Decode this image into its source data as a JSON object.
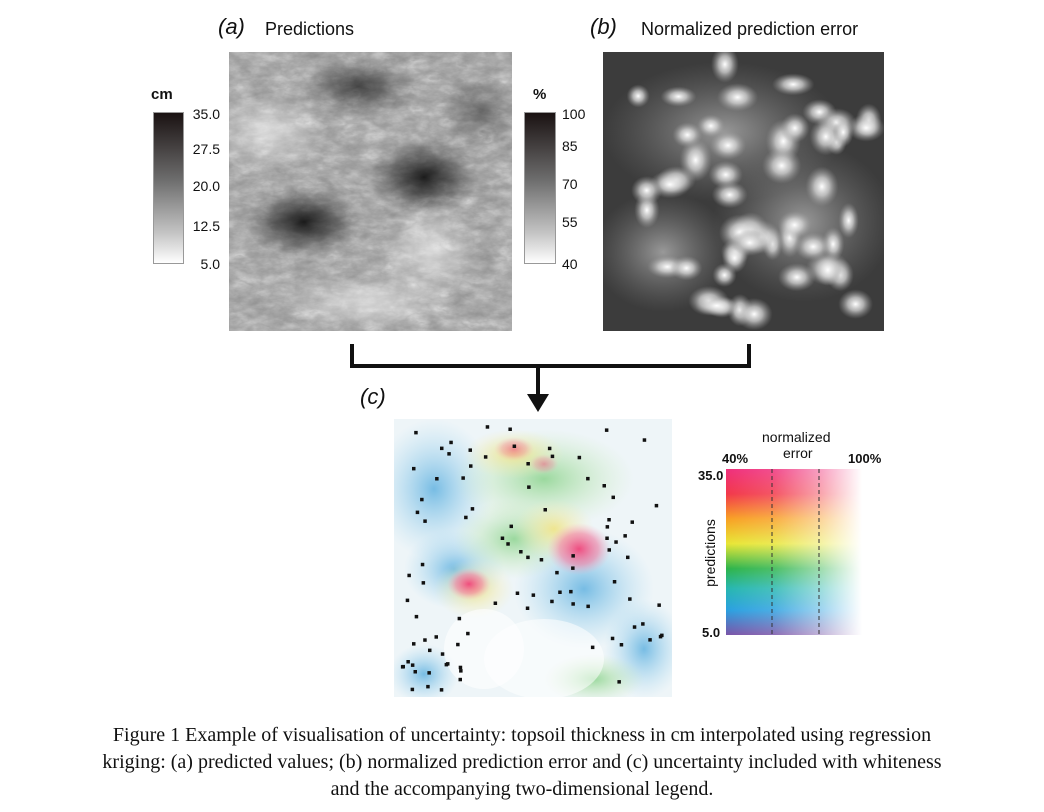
{
  "panel_a": {
    "letter": "(a)",
    "title": "Predictions",
    "colorbar": {
      "unit": "cm",
      "ticks": [
        "35.0",
        "27.5",
        "20.0",
        "12.5",
        "5.0"
      ]
    }
  },
  "panel_b": {
    "letter": "(b)",
    "title": "Normalized prediction error",
    "colorbar": {
      "unit": "%",
      "ticks": [
        "100",
        "85",
        "70",
        "55",
        "40"
      ]
    }
  },
  "panel_c": {
    "letter": "(c)",
    "legend": {
      "header_top": "normalized",
      "header_bottom": "error",
      "left_label": "40%",
      "right_label": "100%",
      "top_value": "35.0",
      "bottom_value": "5.0",
      "axis_label": "predictions"
    }
  },
  "caption": {
    "line1": "Figure 1 Example of visualisation of uncertainty: topsoil thickness in cm interpolated using regression",
    "line2": "kriging: (a) predicted values; (b) normalized prediction error and (c) uncertainty included with whiteness",
    "line3": "and the accompanying two-dimensional legend."
  }
}
